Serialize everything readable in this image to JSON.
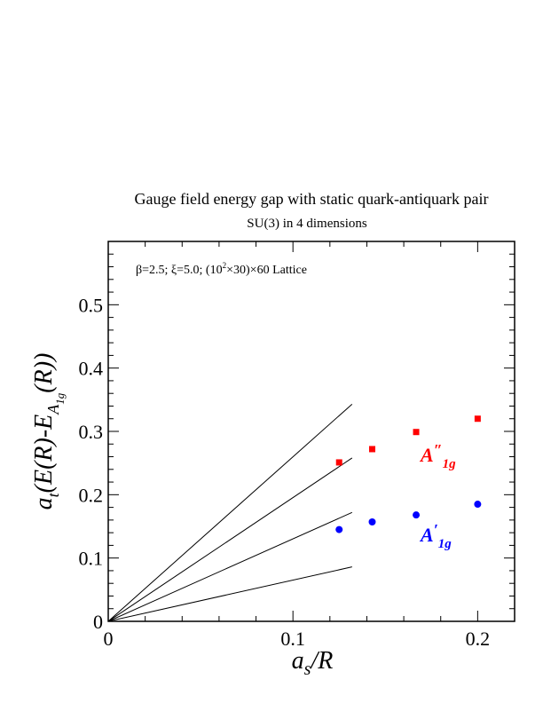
{
  "chart_data": {
    "type": "scatter",
    "title": "Gauge field energy gap with static quark-antiquark pair",
    "subtitle": "SU(3) in 4 dimensions",
    "annotation": {
      "prefix": "β=2.5;  ξ=5.0; (10",
      "sup": "2",
      "suffix": "×30)×60 Lattice"
    },
    "xlabel": {
      "main": "a",
      "sub": "s",
      "rest": "/R"
    },
    "ylabel": {
      "pre": "a",
      "sub_t": "t",
      "mid": "(E(R)-E",
      "sub_A": "A",
      "sub_1g": "1g",
      "post": "(R))"
    },
    "xlim": [
      0,
      0.22
    ],
    "ylim": [
      0,
      0.6
    ],
    "x_ticks": [
      {
        "value": 0,
        "label": "0"
      },
      {
        "value": 0.1,
        "label": "0.1"
      },
      {
        "value": 0.2,
        "label": "0.2"
      }
    ],
    "y_ticks": [
      {
        "value": 0,
        "label": "0"
      },
      {
        "value": 0.1,
        "label": "0.1"
      },
      {
        "value": 0.2,
        "label": "0.2"
      },
      {
        "value": 0.3,
        "label": "0.3"
      },
      {
        "value": 0.4,
        "label": "0.4"
      },
      {
        "value": 0.5,
        "label": "0.5"
      }
    ],
    "series": [
      {
        "name": "A″1g",
        "label_main": "A",
        "label_prime": "″",
        "label_sub": "1g",
        "color": "#ff0000",
        "marker": "square",
        "x": [
          0.125,
          0.1429,
          0.1667,
          0.2
        ],
        "y": [
          0.251,
          0.272,
          0.299,
          0.32
        ]
      },
      {
        "name": "A′1g",
        "label_main": "A",
        "label_prime": "′",
        "label_sub": "1g",
        "color": "#0000ff",
        "marker": "circle",
        "x": [
          0.125,
          0.1429,
          0.1667,
          0.2
        ],
        "y": [
          0.145,
          0.157,
          0.168,
          0.185
        ]
      }
    ],
    "reference_lines": [
      {
        "x": [
          0,
          0.132
        ],
        "y": [
          0,
          0.343
        ]
      },
      {
        "x": [
          0,
          0.132
        ],
        "y": [
          0,
          0.258
        ]
      },
      {
        "x": [
          0,
          0.132
        ],
        "y": [
          0,
          0.172
        ]
      },
      {
        "x": [
          0,
          0.132
        ],
        "y": [
          0,
          0.086
        ]
      }
    ],
    "grid": false,
    "legend": "inline labels"
  }
}
